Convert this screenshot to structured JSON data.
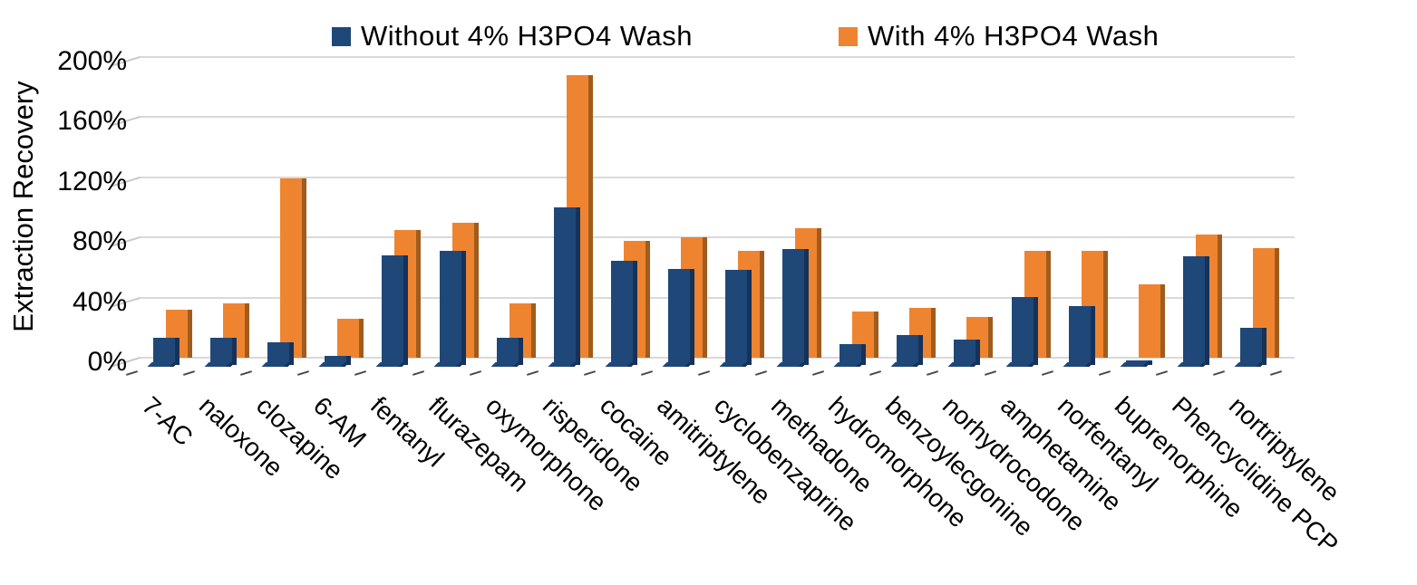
{
  "chart": {
    "legend": [
      {
        "label": "Without 4% H3PO4 Wash",
        "swatch": "blue-square"
      },
      {
        "label": "With 4% H3PO4 Wash",
        "swatch": "orange-square"
      }
    ],
    "y_axis_title": "Extraction Recovery",
    "y_tick_labels": [
      "0%",
      "40%",
      "80%",
      "120%",
      "160%",
      "200%"
    ],
    "colors": {
      "without_wash_fill": "#1F4878",
      "without_wash_side": "#15325B",
      "with_wash_fill": "#EF8430",
      "with_wash_side": "#A05C1D",
      "gridline": "#D9D9D9",
      "text": "#000000",
      "background": "#FFFFFF"
    }
  },
  "chart_data": {
    "type": "bar",
    "title": "",
    "xlabel": "",
    "ylabel": "Extraction Recovery",
    "ylim": [
      0,
      200
    ],
    "y_ticks": [
      0,
      40,
      80,
      120,
      160,
      200
    ],
    "y_tick_format": "percent",
    "grid": true,
    "legend_position": "top",
    "bar_style": "3d-overlapped-cluster",
    "categories": [
      "7-AC",
      "naloxone",
      "clozapine",
      "6-AM",
      "fentanyl",
      "flurazepam",
      "oxymorphone",
      "risperidone",
      "cocaine",
      "amitriptylene",
      "cyclobenzaprine",
      "methadone",
      "hydromorphone",
      "benzoylecgonine",
      "norhydrocodone",
      "amphetamine",
      "norfentanyl",
      "buprenorphine",
      "Phencyclidine PCP",
      "nortriptylene"
    ],
    "series": [
      {
        "name": "Without 4% H3PO4 Wash",
        "color": "#1F4878",
        "side_color": "#15325B",
        "values": [
          18,
          18,
          15,
          6,
          73,
          76,
          18,
          105,
          69,
          64,
          63,
          77,
          14,
          20,
          17,
          45,
          39,
          3,
          72,
          25
        ]
      },
      {
        "name": "With 4% H3PO4 Wash",
        "color": "#EF8430",
        "side_color": "#A05C1D",
        "values": [
          32,
          36,
          119,
          26,
          85,
          90,
          36,
          188,
          78,
          80,
          71,
          86,
          31,
          33,
          27,
          71,
          71,
          49,
          82,
          73
        ]
      }
    ]
  }
}
